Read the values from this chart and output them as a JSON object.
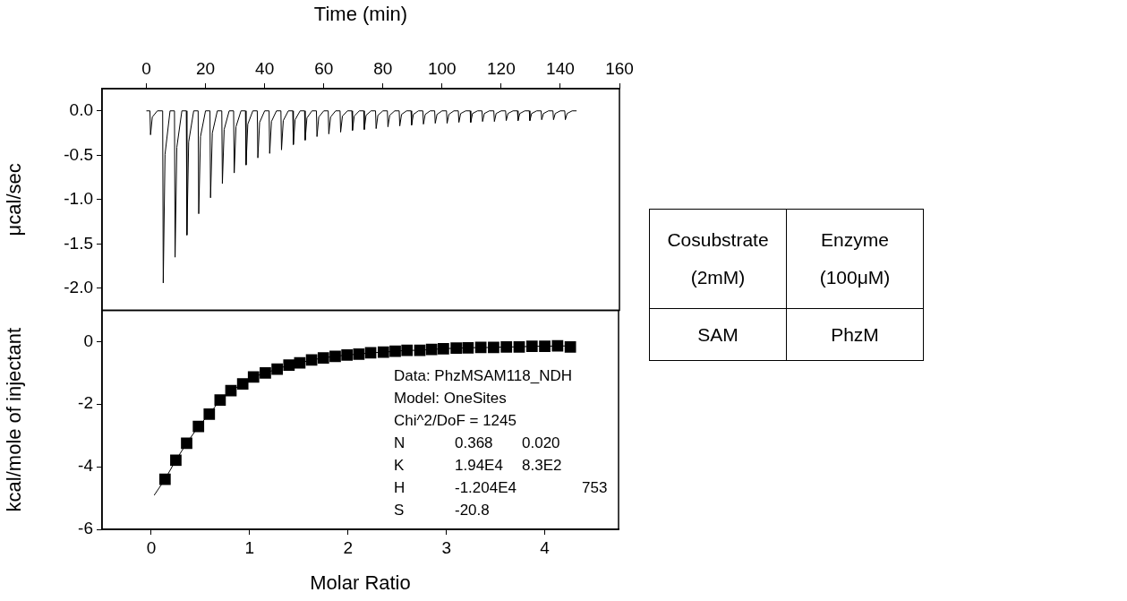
{
  "chart_data": [
    {
      "type": "line",
      "xlabel": "Time (min)",
      "ylabel": "μcal/sec",
      "xlim": [
        -15,
        160
      ],
      "xticks": [
        0,
        20,
        40,
        60,
        80,
        100,
        120,
        140,
        160
      ],
      "ylim": [
        -2.25,
        0.25
      ],
      "yticks": [
        {
          "value": -2,
          "label": "-2.0"
        },
        -1.5,
        {
          "value": -1,
          "label": "-1.0"
        },
        -0.5,
        {
          "value": 0,
          "label": "0.0"
        }
      ],
      "grid": false,
      "legend": false,
      "series": [
        {
          "color": "#000000",
          "x": [
            0,
            1.2,
            1.4,
            2,
            3.7,
            5.5,
            5.7,
            6.3,
            8,
            9.5,
            9.7,
            10.3,
            12,
            13.5,
            13.7,
            14.3,
            16,
            17.5,
            17.7,
            18.3,
            20,
            21.5,
            21.7,
            22.3,
            24,
            25.5,
            25.7,
            26.3,
            28,
            29.5,
            29.7,
            30.3,
            32,
            33.5,
            33.7,
            34.3,
            36,
            37.5,
            37.7,
            38.3,
            40,
            41.5,
            41.7,
            42.3,
            44,
            45.5,
            45.7,
            46.3,
            48,
            49.5,
            49.7,
            50.3,
            52,
            53.5,
            53.7,
            54.3,
            56,
            57.5,
            57.7,
            58.3,
            60,
            61.5,
            61.7,
            62.3,
            64,
            65.5,
            65.7,
            66.3,
            68,
            69.5,
            69.7,
            70.3,
            72,
            73.5,
            73.7,
            74.3,
            76,
            77.5,
            77.7,
            78.3,
            80,
            81.5,
            81.7,
            82.3,
            84,
            85.5,
            85.7,
            86.3,
            88,
            89.5,
            89.7,
            90.3,
            92,
            93.5,
            93.7,
            94.3,
            96,
            97.5,
            97.7,
            98.3,
            100,
            101.5,
            101.7,
            102.3,
            104,
            105.5,
            105.7,
            106.3,
            108,
            109.5,
            109.7,
            110.3,
            112,
            113.5,
            113.7,
            114.3,
            116,
            117.5,
            117.7,
            118.3,
            120,
            121.5,
            121.7,
            122.3,
            124,
            125.5,
            125.7,
            126.3,
            128,
            129.5,
            129.7,
            130.3,
            132,
            133.5,
            133.7,
            134.3,
            136,
            137.5,
            137.7,
            138.3,
            140,
            141.5,
            141.7,
            142.3,
            144,
            145.5
          ],
          "values": [
            0,
            0,
            -0.27,
            -0.07,
            0,
            0,
            -1.94,
            -0.49,
            0,
            0,
            -1.65,
            -0.41,
            0,
            0,
            -1.4,
            -0.35,
            0,
            0,
            -1.16,
            -0.29,
            0,
            0,
            -0.98,
            -0.25,
            0,
            0,
            -0.82,
            -0.21,
            0,
            0,
            -0.7,
            -0.18,
            0,
            0,
            -0.61,
            -0.15,
            0,
            0,
            -0.53,
            -0.13,
            0,
            0,
            -0.48,
            -0.12,
            0,
            0,
            -0.44,
            -0.11,
            0,
            0,
            -0.38,
            -0.1,
            0,
            0,
            -0.33,
            -0.08,
            0,
            0,
            -0.29,
            -0.07,
            0,
            0,
            -0.26,
            -0.07,
            0,
            0,
            -0.24,
            -0.06,
            0,
            0,
            -0.22,
            -0.06,
            0,
            0,
            -0.21,
            -0.05,
            0,
            0,
            -0.2,
            -0.05,
            0,
            0,
            -0.18,
            -0.05,
            0,
            0,
            -0.17,
            -0.04,
            0,
            0,
            -0.16,
            -0.04,
            0,
            0,
            -0.15,
            -0.04,
            0,
            0,
            -0.14,
            -0.04,
            0,
            0,
            -0.14,
            -0.04,
            0,
            0,
            -0.13,
            -0.03,
            0,
            0,
            -0.13,
            -0.03,
            0,
            0,
            -0.12,
            -0.03,
            0,
            0,
            -0.12,
            -0.03,
            0,
            0,
            -0.11,
            -0.03,
            0,
            0,
            -0.11,
            -0.03,
            0,
            0,
            -0.11,
            -0.03,
            0,
            0,
            -0.1,
            -0.03,
            0,
            0,
            -0.1,
            -0.03,
            0,
            0,
            -0.1,
            -0.03,
            0,
            0
          ]
        }
      ]
    },
    {
      "type": "scatter",
      "xlabel": "Molar Ratio",
      "ylabel": "kcal/mole of injectant",
      "xlim": [
        -0.5,
        4.75
      ],
      "xticks": [
        0,
        1,
        2,
        3,
        4
      ],
      "ylim": [
        -6,
        1
      ],
      "yticks": [
        -6,
        -4,
        -2,
        0
      ],
      "grid": false,
      "legend": false,
      "annotations": [
        "Data: PhzMSAM118_NDH",
        "Model: OneSites",
        "Chi^2/DoF = 1245",
        "N\t0.368\t0.020",
        "K\t1.94E4\t8.3E2",
        "H\t-1.204E4\t\t753",
        "S\t-20.8"
      ],
      "series": [
        {
          "type": "line",
          "marker": "none",
          "color": "#000000",
          "x": [
            0.03,
            0.14,
            0.25,
            0.36,
            0.48,
            0.59,
            0.7,
            0.81,
            0.93,
            1.04,
            1.16,
            1.28,
            1.4,
            1.51,
            1.63,
            1.75,
            1.87,
            1.99,
            2.11,
            2.23,
            2.36,
            2.48,
            2.6,
            2.73,
            2.85,
            2.97,
            3.1,
            3.22,
            3.35,
            3.48,
            3.61,
            3.74,
            3.87,
            4,
            4.13,
            4.26
          ],
          "values": [
            -4.91,
            -4.4,
            -3.79,
            -3.25,
            -2.71,
            -2.32,
            -1.87,
            -1.57,
            -1.35,
            -1.13,
            -1,
            -0.88,
            -0.75,
            -0.68,
            -0.59,
            -0.52,
            -0.47,
            -0.43,
            -0.4,
            -0.36,
            -0.34,
            -0.31,
            -0.28,
            -0.28,
            -0.25,
            -0.23,
            -0.21,
            -0.2,
            -0.19,
            -0.19,
            -0.17,
            -0.17,
            -0.15,
            -0.15,
            -0.14,
            -0.14
          ]
        },
        {
          "type": "scatter",
          "marker": "square",
          "color": "#000000",
          "x": [
            0.14,
            0.25,
            0.36,
            0.48,
            0.59,
            0.7,
            0.81,
            0.93,
            1.04,
            1.16,
            1.28,
            1.4,
            1.51,
            1.63,
            1.75,
            1.87,
            1.99,
            2.11,
            2.23,
            2.36,
            2.48,
            2.6,
            2.73,
            2.85,
            2.97,
            3.1,
            3.22,
            3.35,
            3.48,
            3.61,
            3.74,
            3.87,
            4,
            4.13,
            4.26
          ],
          "values": [
            -4.4,
            -3.79,
            -3.25,
            -2.71,
            -2.32,
            -1.87,
            -1.57,
            -1.35,
            -1.13,
            -1,
            -0.88,
            -0.75,
            -0.68,
            -0.59,
            -0.52,
            -0.47,
            -0.43,
            -0.4,
            -0.36,
            -0.34,
            -0.31,
            -0.28,
            -0.28,
            -0.25,
            -0.23,
            -0.21,
            -0.2,
            -0.19,
            -0.19,
            -0.17,
            -0.17,
            -0.15,
            -0.15,
            -0.14,
            -0.17
          ]
        }
      ]
    },
    {
      "type": "other",
      "categories": [
        "Cosubstrate (2mM)",
        "Enzyme (100μM)"
      ],
      "annotations": [
        "SAM",
        "PhzM"
      ]
    }
  ]
}
